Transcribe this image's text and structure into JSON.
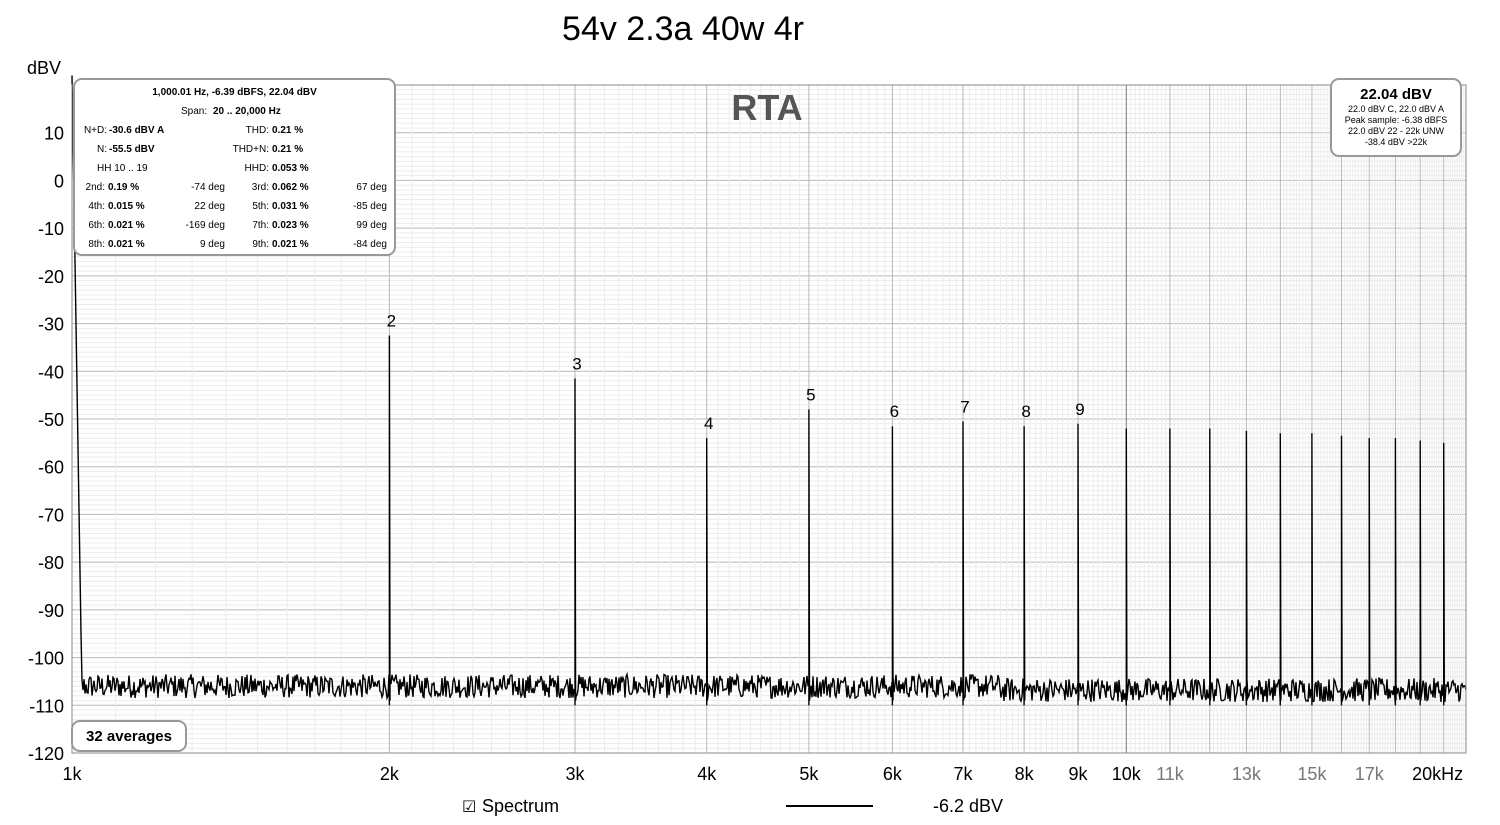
{
  "window": {
    "title": "54v 2.3a 40w 4r"
  },
  "chart_data": {
    "type": "line",
    "title": "54v 2.3a 40w 4r",
    "watermark": "RTA",
    "ylabel": "dBV",
    "xlabel": "",
    "x_scale": "log",
    "xlim": [
      1000,
      21000
    ],
    "ylim": [
      -120,
      20
    ],
    "grid": true,
    "y_ticks": [
      10,
      0,
      -10,
      -20,
      -30,
      -40,
      -50,
      -60,
      -70,
      -80,
      -90,
      -100,
      -110,
      -120
    ],
    "x_ticks": [
      {
        "value": 1000,
        "label": "1k",
        "style": "major"
      },
      {
        "value": 2000,
        "label": "2k",
        "style": "major"
      },
      {
        "value": 3000,
        "label": "3k",
        "style": "major"
      },
      {
        "value": 4000,
        "label": "4k",
        "style": "major"
      },
      {
        "value": 5000,
        "label": "5k",
        "style": "major"
      },
      {
        "value": 6000,
        "label": "6k",
        "style": "major"
      },
      {
        "value": 7000,
        "label": "7k",
        "style": "major"
      },
      {
        "value": 8000,
        "label": "8k",
        "style": "major"
      },
      {
        "value": 9000,
        "label": "9k",
        "style": "major"
      },
      {
        "value": 10000,
        "label": "10k",
        "style": "major"
      },
      {
        "value": 11000,
        "label": "11k",
        "style": "minor"
      },
      {
        "value": 13000,
        "label": "13k",
        "style": "minor"
      },
      {
        "value": 15000,
        "label": "15k",
        "style": "minor"
      },
      {
        "value": 17000,
        "label": "17k",
        "style": "minor"
      },
      {
        "value": 20000,
        "label": "20kHz",
        "style": "major"
      }
    ],
    "noise_floor_dbv": -106,
    "fundamental": {
      "freq": 1000,
      "level": 22
    },
    "harmonics": [
      {
        "n": 2,
        "freq": 2000,
        "level": -32.5,
        "label": "2"
      },
      {
        "n": 3,
        "freq": 3000,
        "level": -41.5,
        "label": "3"
      },
      {
        "n": 4,
        "freq": 4000,
        "level": -54,
        "label": "4"
      },
      {
        "n": 5,
        "freq": 5000,
        "level": -48,
        "label": "5"
      },
      {
        "n": 6,
        "freq": 6000,
        "level": -51.5,
        "label": "6"
      },
      {
        "n": 7,
        "freq": 7000,
        "level": -50.5,
        "label": "7"
      },
      {
        "n": 8,
        "freq": 8000,
        "level": -51.5,
        "label": "8"
      },
      {
        "n": 9,
        "freq": 9000,
        "level": -51,
        "label": "9"
      },
      {
        "n": 10,
        "freq": 10000,
        "level": -52
      },
      {
        "n": 11,
        "freq": 11000,
        "level": -52
      },
      {
        "n": 12,
        "freq": 12000,
        "level": -52
      },
      {
        "n": 13,
        "freq": 13000,
        "level": -52.5
      },
      {
        "n": 14,
        "freq": 14000,
        "level": -53
      },
      {
        "n": 15,
        "freq": 15000,
        "level": -53
      },
      {
        "n": 16,
        "freq": 16000,
        "level": -53.5
      },
      {
        "n": 17,
        "freq": 17000,
        "level": -54
      },
      {
        "n": 18,
        "freq": 18000,
        "level": -54
      },
      {
        "n": 19,
        "freq": 19000,
        "level": -54.5
      },
      {
        "n": 20,
        "freq": 20000,
        "level": -55
      }
    ],
    "series": [
      {
        "name": "Spectrum",
        "legend_value": "-6.2 dBV",
        "color": "#000000",
        "checked": true
      }
    ]
  },
  "stats_panel": {
    "header": "1,000.01 Hz, -6.39 dBFS, 22.04 dBV",
    "span_label": "Span:",
    "span_value": "20 .. 20,000 Hz",
    "nd_label": "N+D:",
    "nd_value": "-30.6 dBV A",
    "thd_label": "THD:",
    "thd_value": "0.21 %",
    "n_label": "N:",
    "n_value": "-55.5 dBV",
    "thdn_label": "THD+N:",
    "thdn_value": "0.21 %",
    "hh_label": "HH 10 .. 19",
    "hhd_label": "HHD:",
    "hhd_value": "0.053 %",
    "harmonic_rows": [
      {
        "l_label": "2nd:",
        "l_pct": "0.19 %",
        "l_deg": "-74 deg",
        "r_label": "3rd:",
        "r_pct": "0.062 %",
        "r_deg": "67 deg"
      },
      {
        "l_label": "4th:",
        "l_pct": "0.015 %",
        "l_deg": "22 deg",
        "r_label": "5th:",
        "r_pct": "0.031 %",
        "r_deg": "-85 deg"
      },
      {
        "l_label": "6th:",
        "l_pct": "0.021 %",
        "l_deg": "-169 deg",
        "r_label": "7th:",
        "r_pct": "0.023 %",
        "r_deg": "99 deg"
      },
      {
        "l_label": "8th:",
        "l_pct": "0.021 %",
        "l_deg": "9 deg",
        "r_label": "9th:",
        "r_pct": "0.021 %",
        "r_deg": "-84 deg"
      }
    ]
  },
  "level_panel": {
    "value": "22.04 dBV",
    "line1": "22.0 dBV C, 22.0 dBV A",
    "line2": "Peak sample: -6.38 dBFS",
    "line3": "22.0 dBV 22 - 22k UNW",
    "line4": "-38.4 dBV >22k"
  },
  "averages_label": "32 averages"
}
